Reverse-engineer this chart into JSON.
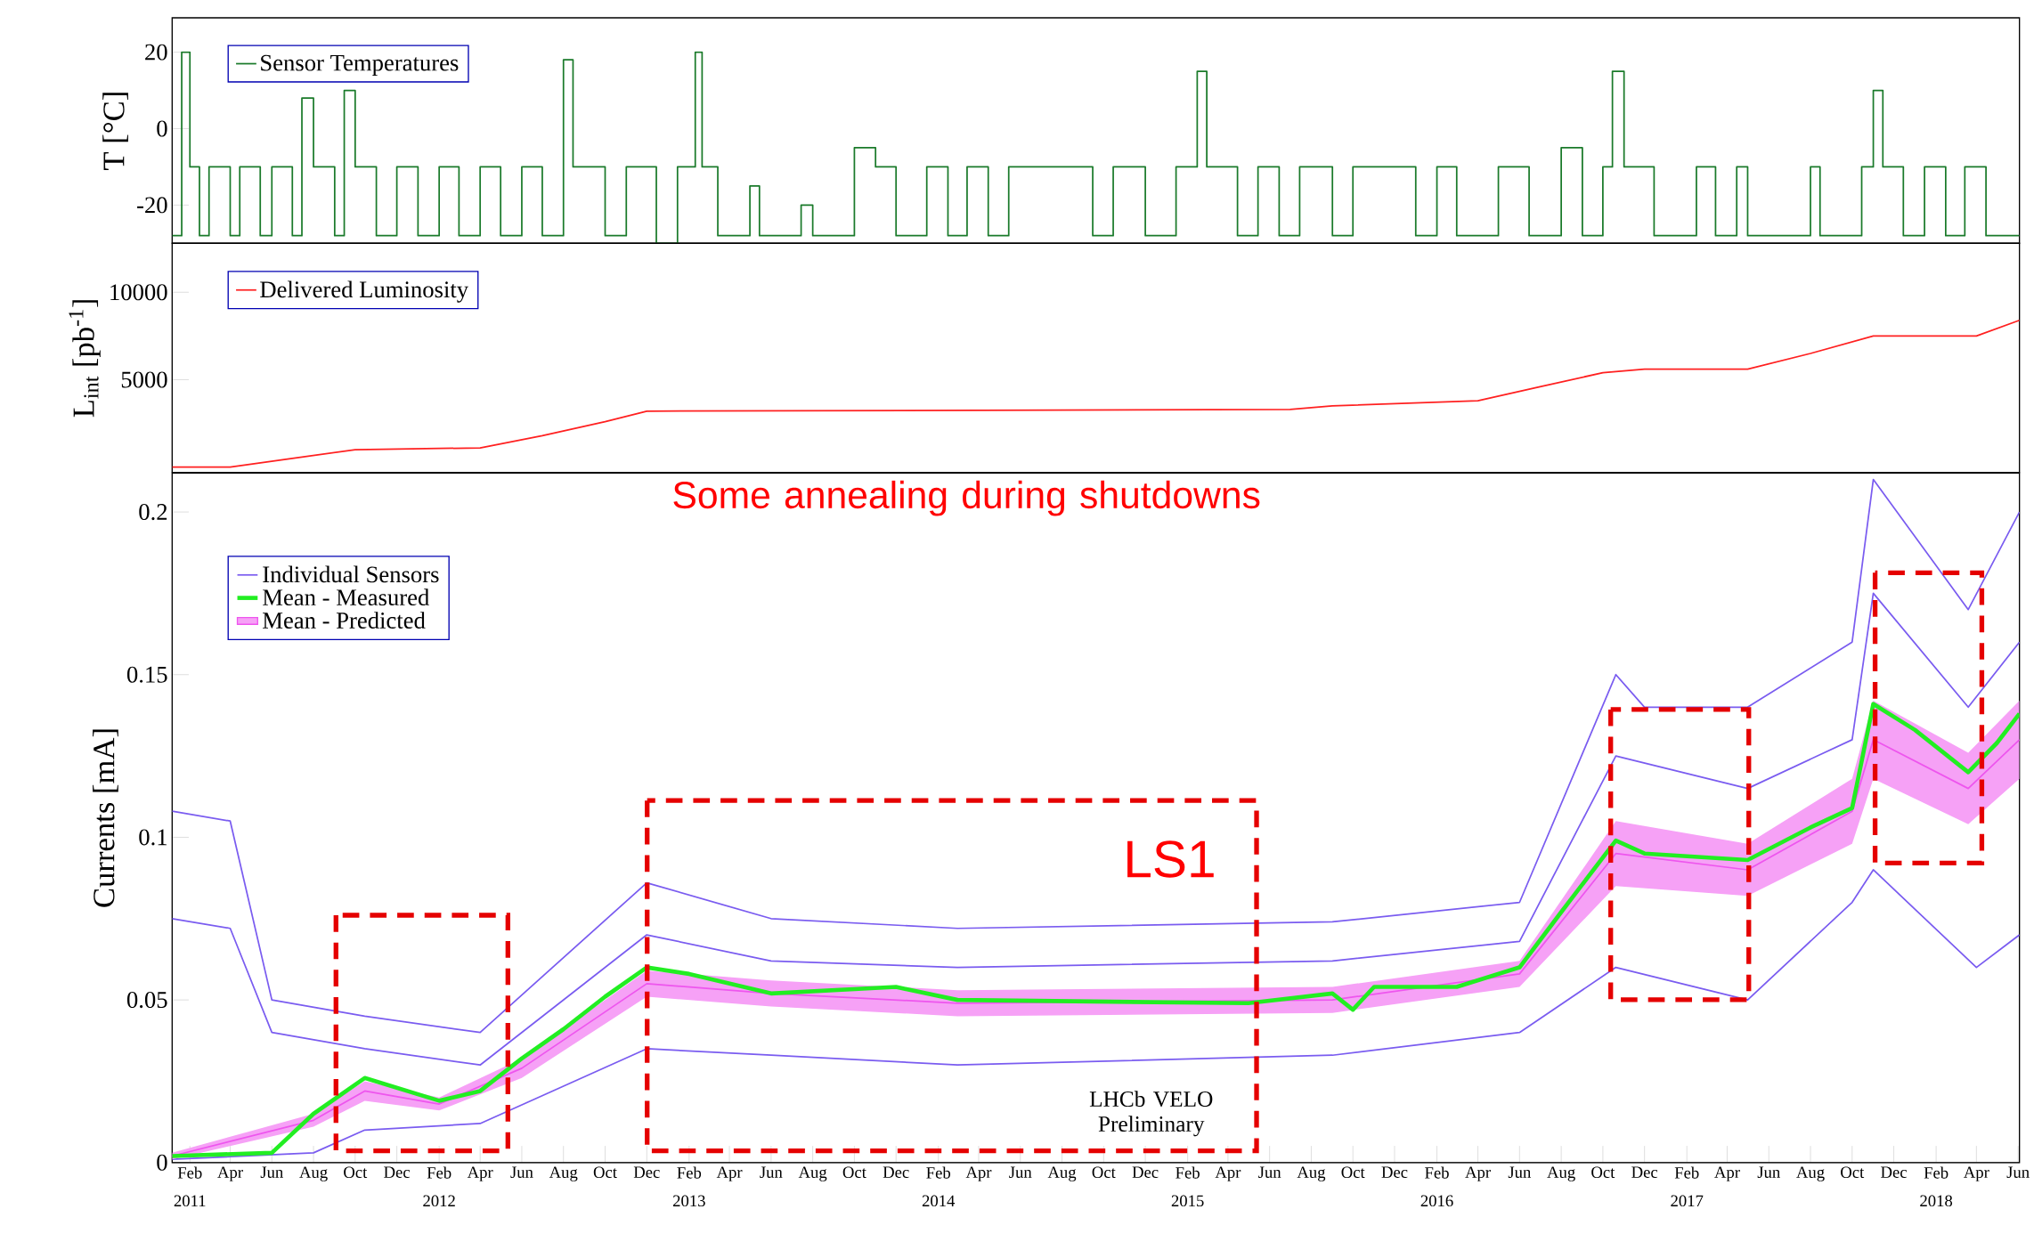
{
  "chart_data": [
    {
      "type": "step",
      "ylabel": "T [°C]",
      "xlim": [
        "2011-01-06",
        "2018-06-03"
      ],
      "ylim": [
        -30,
        29
      ],
      "yticks": [
        20,
        0,
        -20
      ],
      "tick_labels": "y",
      "legend": "top left",
      "series": [
        {
          "name": "Sensor Temperatures",
          "color": "#1a7a2a",
          "x": [
            "2011-01-06",
            "2011-01-20",
            "2011-02-01",
            "2011-02-15",
            "2011-03-01",
            "2011-04-01",
            "2011-04-15",
            "2011-05-15",
            "2011-06-01",
            "2011-07-01",
            "2011-07-15",
            "2011-08-01",
            "2011-09-01",
            "2011-09-15",
            "2011-10-01",
            "2011-11-01",
            "2011-12-01",
            "2012-01-01",
            "2012-02-01",
            "2012-03-01",
            "2012-04-01",
            "2012-05-01",
            "2012-06-01",
            "2012-07-01",
            "2012-08-01",
            "2012-08-15",
            "2012-10-01",
            "2012-11-01",
            "2012-12-15",
            "2013-01-15",
            "2013-02-10",
            "2013-02-20",
            "2013-03-15",
            "2013-05-01",
            "2013-05-15",
            "2013-07-15",
            "2013-08-01",
            "2013-10-01",
            "2013-11-01",
            "2013-12-01",
            "2014-01-15",
            "2014-02-15",
            "2014-03-15",
            "2014-04-15",
            "2014-05-15",
            "2014-09-15",
            "2014-10-15",
            "2014-12-01",
            "2015-01-15",
            "2015-02-15",
            "2015-03-01",
            "2015-04-15",
            "2015-05-15",
            "2015-06-15",
            "2015-07-15",
            "2015-09-01",
            "2015-10-01",
            "2016-01-01",
            "2016-02-01",
            "2016-03-01",
            "2016-05-01",
            "2016-06-15",
            "2016-08-01",
            "2016-09-01",
            "2016-10-01",
            "2016-10-15",
            "2016-11-01",
            "2016-12-15",
            "2017-02-15",
            "2017-03-15",
            "2017-04-15",
            "2017-05-01",
            "2017-08-01",
            "2017-08-15",
            "2017-10-15",
            "2017-11-01",
            "2017-11-15",
            "2017-12-15",
            "2018-01-15",
            "2018-02-15",
            "2018-03-15",
            "2018-04-15",
            "2018-06-03"
          ],
          "values": [
            -28,
            20,
            -10,
            -28,
            -10,
            -28,
            -10,
            -28,
            -10,
            -28,
            8,
            -10,
            -28,
            10,
            -10,
            -28,
            -10,
            -28,
            -10,
            -28,
            -10,
            -28,
            -10,
            -28,
            18,
            -10,
            -28,
            -10,
            -30,
            -10,
            20,
            -10,
            -28,
            -15,
            -28,
            -20,
            -28,
            -5,
            -10,
            -28,
            -10,
            -28,
            -10,
            -28,
            -10,
            -28,
            -10,
            -28,
            -10,
            15,
            -10,
            -28,
            -10,
            -28,
            -10,
            -28,
            -10,
            -28,
            -10,
            -28,
            -10,
            -28,
            -5,
            -28,
            -10,
            15,
            -10,
            -28,
            -10,
            -28,
            -10,
            -28,
            -10,
            -28,
            -10,
            10,
            -10,
            -28,
            -10,
            -28,
            -10,
            -28,
            -28
          ]
        }
      ]
    },
    {
      "type": "line",
      "ylabel": "L$_{int}$ [pb$^{-1}$]",
      "xlim": [
        "2011-01-06",
        "2018-06-03"
      ],
      "ylim": [
        -300,
        12800
      ],
      "yticks": [
        5000,
        10000
      ],
      "tick_labels": "y",
      "legend": "top left",
      "series": [
        {
          "name": "Delivered Luminosity",
          "color": "#ff2020",
          "x": [
            "2011-01-06",
            "2011-04",
            "2011-07",
            "2011-10",
            "2012-04",
            "2012-07",
            "2012-10",
            "2012-12",
            "2015-07",
            "2015-09",
            "2016-04",
            "2016-07",
            "2016-10",
            "2016-12",
            "2017-05",
            "2017-08",
            "2017-11",
            "2018-04",
            "2018-06-03"
          ],
          "values": [
            0,
            0,
            500,
            1000,
            1100,
            1800,
            2600,
            3200,
            3300,
            3500,
            3800,
            4600,
            5400,
            5600,
            5600,
            6500,
            7500,
            7500,
            8400
          ]
        }
      ]
    },
    {
      "type": "line",
      "ylabel": "Currents [mA]",
      "xlim": [
        "2011-01-06",
        "2018-06-03"
      ],
      "ylim": [
        0,
        0.212
      ],
      "yticks": [
        0,
        0.05,
        0.1,
        0.15,
        0.2
      ],
      "legend": "top left",
      "x2lim": [
        "2011-01-06",
        "2018-06-03"
      ],
      "x2ticks": [
        {
          "value": "2011-02",
          "label": "2011"
        },
        {
          "value": "2012-02",
          "label": "2012"
        },
        {
          "value": "2013-02",
          "label": "2013"
        },
        {
          "value": "2014-02",
          "label": "2014"
        },
        {
          "value": "2015-02",
          "label": "2015"
        },
        {
          "value": "2016-02",
          "label": "2016"
        },
        {
          "value": "2017-02",
          "label": "2017"
        },
        {
          "value": "2018-02",
          "label": "2018"
        }
      ],
      "xticks": [
        {
          "value": "2011-02",
          "label": "Feb"
        },
        {
          "value": "2011-04",
          "label": "Apr"
        },
        {
          "value": "2011-06",
          "label": "Jun"
        },
        {
          "value": "2011-08",
          "label": "Aug"
        },
        {
          "value": "2011-10",
          "label": "Oct"
        },
        {
          "value": "2011-12",
          "label": "Dec"
        },
        {
          "value": "2012-02",
          "label": "Feb"
        },
        {
          "value": "2012-04",
          "label": "Apr"
        },
        {
          "value": "2012-06",
          "label": "Jun"
        },
        {
          "value": "2012-08",
          "label": "Aug"
        },
        {
          "value": "2012-10",
          "label": "Oct"
        },
        {
          "value": "2012-12",
          "label": "Dec"
        },
        {
          "value": "2013-02",
          "label": "Feb"
        },
        {
          "value": "2013-04",
          "label": "Apr"
        },
        {
          "value": "2013-06",
          "label": "Jun"
        },
        {
          "value": "2013-08",
          "label": "Aug"
        },
        {
          "value": "2013-10",
          "label": "Oct"
        },
        {
          "value": "2013-12",
          "label": "Dec"
        },
        {
          "value": "2014-02",
          "label": "Feb"
        },
        {
          "value": "2014-04",
          "label": "Apr"
        },
        {
          "value": "2014-06",
          "label": "Jun"
        },
        {
          "value": "2014-08",
          "label": "Aug"
        },
        {
          "value": "2014-10",
          "label": "Oct"
        },
        {
          "value": "2014-12",
          "label": "Dec"
        },
        {
          "value": "2015-02",
          "label": "Feb"
        },
        {
          "value": "2015-04",
          "label": "Apr"
        },
        {
          "value": "2015-06",
          "label": "Jun"
        },
        {
          "value": "2015-08",
          "label": "Aug"
        },
        {
          "value": "2015-10",
          "label": "Oct"
        },
        {
          "value": "2015-12",
          "label": "Dec"
        },
        {
          "value": "2016-02",
          "label": "Feb"
        },
        {
          "value": "2016-04",
          "label": "Apr"
        },
        {
          "value": "2016-06",
          "label": "Jun"
        },
        {
          "value": "2016-08",
          "label": "Aug"
        },
        {
          "value": "2016-10",
          "label": "Oct"
        },
        {
          "value": "2016-12",
          "label": "Dec"
        },
        {
          "value": "2017-02",
          "label": "Feb"
        },
        {
          "value": "2017-04",
          "label": "Apr"
        },
        {
          "value": "2017-06",
          "label": "Jun"
        },
        {
          "value": "2017-08",
          "label": "Aug"
        },
        {
          "value": "2017-10",
          "label": "Oct"
        },
        {
          "value": "2017-12",
          "label": "Dec"
        },
        {
          "value": "2018-02",
          "label": "Feb"
        },
        {
          "value": "2018-04",
          "label": "Apr"
        },
        {
          "value": "2018-06",
          "label": "Jun"
        }
      ],
      "annotations": [
        "Some annealing during shutdowns",
        "LHCb VELO Preliminary",
        "LS1"
      ],
      "series": [
        {
          "name": "Individual Sensors",
          "color": "#7a5cf0",
          "x": [
            "2011-01-06",
            "2011-04",
            "2011-06",
            "2011-10-15",
            "2012-04",
            "2012-12",
            "2013-06",
            "2014-03",
            "2015-09",
            "2016-06",
            "2016-10-20",
            "2016-12",
            "2017-05",
            "2017-10",
            "2017-11",
            "2018-03-20",
            "2018-06-03"
          ],
          "values": [
            0.108,
            0.105,
            0.05,
            0.045,
            0.04,
            0.086,
            0.075,
            0.072,
            0.074,
            0.08,
            0.15,
            0.14,
            0.14,
            0.16,
            0.21,
            0.17,
            0.2
          ]
        },
        {
          "color": "#7a5cf0",
          "x": [
            "2011-01-06",
            "2011-08",
            "2011-10-15",
            "2012-04",
            "2012-12",
            "2013-06",
            "2014-03",
            "2015-09",
            "2016-06",
            "2016-10-20",
            "2017-05",
            "2017-10",
            "2017-11",
            "2018-04",
            "2018-06-03"
          ],
          "values": [
            0.001,
            0.003,
            0.01,
            0.012,
            0.035,
            0.033,
            0.03,
            0.033,
            0.04,
            0.06,
            0.05,
            0.08,
            0.09,
            0.06,
            0.07
          ]
        },
        {
          "color": "#7a5cf0",
          "x": [
            "2011-01-06",
            "2011-04",
            "2011-06",
            "2011-10-15",
            "2012-04",
            "2012-12",
            "2013-06",
            "2014-03",
            "2015-09",
            "2016-06",
            "2016-10-20",
            "2017-05",
            "2017-10",
            "2017-11",
            "2018-03-20",
            "2018-06-03"
          ],
          "values": [
            0.075,
            0.072,
            0.04,
            0.035,
            0.03,
            0.07,
            0.062,
            0.06,
            0.062,
            0.068,
            0.125,
            0.115,
            0.13,
            0.175,
            0.14,
            0.16
          ]
        },
        {
          "name": "Mean - Measured",
          "color": "#22ee22",
          "x": [
            "2011-01-06",
            "2011-06",
            "2011-08",
            "2011-10-15",
            "2012-02",
            "2012-04",
            "2012-06",
            "2012-08",
            "2012-10",
            "2012-12",
            "2013-02",
            "2013-06",
            "2013-12",
            "2014-03",
            "2015-05",
            "2015-09",
            "2015-10",
            "2015-11",
            "2016-03",
            "2016-06",
            "2016-08",
            "2016-10-20",
            "2016-12",
            "2017-05",
            "2017-08",
            "2017-10",
            "2017-11",
            "2018-01",
            "2018-03-20",
            "2018-05",
            "2018-06-03"
          ],
          "values": [
            0.002,
            0.003,
            0.015,
            0.026,
            0.019,
            0.022,
            0.032,
            0.041,
            0.051,
            0.06,
            0.058,
            0.052,
            0.054,
            0.05,
            0.049,
            0.052,
            0.047,
            0.054,
            0.054,
            0.06,
            0.077,
            0.099,
            0.095,
            0.093,
            0.103,
            0.109,
            0.141,
            0.133,
            0.12,
            0.129,
            0.138
          ]
        },
        {
          "name": "Mean - Predicted",
          "color": "#ee55ee",
          "x": [
            "2011-01-06",
            "2011-08",
            "2011-10-15",
            "2012-02",
            "2012-06",
            "2012-12",
            "2013-06",
            "2014-03",
            "2015-09",
            "2016-06",
            "2016-10-20",
            "2017-05",
            "2017-10",
            "2017-11",
            "2018-03-20",
            "2018-06-03"
          ],
          "values": [
            0.002,
            0.013,
            0.022,
            0.018,
            0.029,
            0.055,
            0.052,
            0.049,
            0.05,
            0.058,
            0.095,
            0.09,
            0.108,
            0.13,
            0.115,
            0.13
          ],
          "lower": [
            0.001,
            0.011,
            0.019,
            0.016,
            0.026,
            0.051,
            0.048,
            0.045,
            0.046,
            0.054,
            0.085,
            0.082,
            0.098,
            0.118,
            0.104,
            0.118
          ],
          "upper": [
            0.003,
            0.015,
            0.025,
            0.02,
            0.032,
            0.059,
            0.056,
            0.053,
            0.054,
            0.062,
            0.105,
            0.098,
            0.118,
            0.142,
            0.126,
            0.142
          ]
        }
      ]
    }
  ]
}
